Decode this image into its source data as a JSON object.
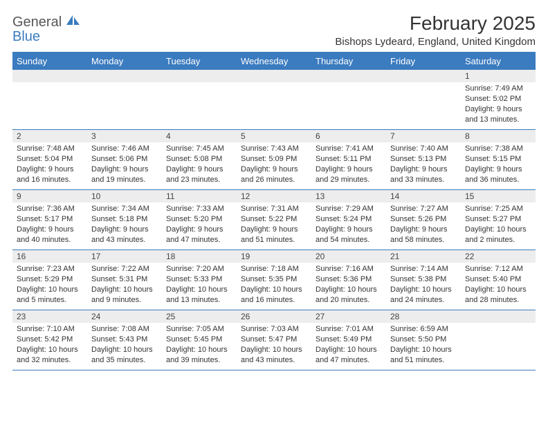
{
  "logo": {
    "text1": "General",
    "text2": "Blue"
  },
  "title": "February 2025",
  "location": "Bishops Lydeard, England, United Kingdom",
  "colors": {
    "header_bg": "#3b7bbf",
    "daynum_bg": "#ededed",
    "text": "#333333",
    "logo_gray": "#555555",
    "logo_blue": "#3b7bbf"
  },
  "day_labels": [
    "Sunday",
    "Monday",
    "Tuesday",
    "Wednesday",
    "Thursday",
    "Friday",
    "Saturday"
  ],
  "weeks": [
    [
      {
        "n": "",
        "lines": []
      },
      {
        "n": "",
        "lines": []
      },
      {
        "n": "",
        "lines": []
      },
      {
        "n": "",
        "lines": []
      },
      {
        "n": "",
        "lines": []
      },
      {
        "n": "",
        "lines": []
      },
      {
        "n": "1",
        "lines": [
          "Sunrise: 7:49 AM",
          "Sunset: 5:02 PM",
          "Daylight: 9 hours and 13 minutes."
        ]
      }
    ],
    [
      {
        "n": "2",
        "lines": [
          "Sunrise: 7:48 AM",
          "Sunset: 5:04 PM",
          "Daylight: 9 hours and 16 minutes."
        ]
      },
      {
        "n": "3",
        "lines": [
          "Sunrise: 7:46 AM",
          "Sunset: 5:06 PM",
          "Daylight: 9 hours and 19 minutes."
        ]
      },
      {
        "n": "4",
        "lines": [
          "Sunrise: 7:45 AM",
          "Sunset: 5:08 PM",
          "Daylight: 9 hours and 23 minutes."
        ]
      },
      {
        "n": "5",
        "lines": [
          "Sunrise: 7:43 AM",
          "Sunset: 5:09 PM",
          "Daylight: 9 hours and 26 minutes."
        ]
      },
      {
        "n": "6",
        "lines": [
          "Sunrise: 7:41 AM",
          "Sunset: 5:11 PM",
          "Daylight: 9 hours and 29 minutes."
        ]
      },
      {
        "n": "7",
        "lines": [
          "Sunrise: 7:40 AM",
          "Sunset: 5:13 PM",
          "Daylight: 9 hours and 33 minutes."
        ]
      },
      {
        "n": "8",
        "lines": [
          "Sunrise: 7:38 AM",
          "Sunset: 5:15 PM",
          "Daylight: 9 hours and 36 minutes."
        ]
      }
    ],
    [
      {
        "n": "9",
        "lines": [
          "Sunrise: 7:36 AM",
          "Sunset: 5:17 PM",
          "Daylight: 9 hours and 40 minutes."
        ]
      },
      {
        "n": "10",
        "lines": [
          "Sunrise: 7:34 AM",
          "Sunset: 5:18 PM",
          "Daylight: 9 hours and 43 minutes."
        ]
      },
      {
        "n": "11",
        "lines": [
          "Sunrise: 7:33 AM",
          "Sunset: 5:20 PM",
          "Daylight: 9 hours and 47 minutes."
        ]
      },
      {
        "n": "12",
        "lines": [
          "Sunrise: 7:31 AM",
          "Sunset: 5:22 PM",
          "Daylight: 9 hours and 51 minutes."
        ]
      },
      {
        "n": "13",
        "lines": [
          "Sunrise: 7:29 AM",
          "Sunset: 5:24 PM",
          "Daylight: 9 hours and 54 minutes."
        ]
      },
      {
        "n": "14",
        "lines": [
          "Sunrise: 7:27 AM",
          "Sunset: 5:26 PM",
          "Daylight: 9 hours and 58 minutes."
        ]
      },
      {
        "n": "15",
        "lines": [
          "Sunrise: 7:25 AM",
          "Sunset: 5:27 PM",
          "Daylight: 10 hours and 2 minutes."
        ]
      }
    ],
    [
      {
        "n": "16",
        "lines": [
          "Sunrise: 7:23 AM",
          "Sunset: 5:29 PM",
          "Daylight: 10 hours and 5 minutes."
        ]
      },
      {
        "n": "17",
        "lines": [
          "Sunrise: 7:22 AM",
          "Sunset: 5:31 PM",
          "Daylight: 10 hours and 9 minutes."
        ]
      },
      {
        "n": "18",
        "lines": [
          "Sunrise: 7:20 AM",
          "Sunset: 5:33 PM",
          "Daylight: 10 hours and 13 minutes."
        ]
      },
      {
        "n": "19",
        "lines": [
          "Sunrise: 7:18 AM",
          "Sunset: 5:35 PM",
          "Daylight: 10 hours and 16 minutes."
        ]
      },
      {
        "n": "20",
        "lines": [
          "Sunrise: 7:16 AM",
          "Sunset: 5:36 PM",
          "Daylight: 10 hours and 20 minutes."
        ]
      },
      {
        "n": "21",
        "lines": [
          "Sunrise: 7:14 AM",
          "Sunset: 5:38 PM",
          "Daylight: 10 hours and 24 minutes."
        ]
      },
      {
        "n": "22",
        "lines": [
          "Sunrise: 7:12 AM",
          "Sunset: 5:40 PM",
          "Daylight: 10 hours and 28 minutes."
        ]
      }
    ],
    [
      {
        "n": "23",
        "lines": [
          "Sunrise: 7:10 AM",
          "Sunset: 5:42 PM",
          "Daylight: 10 hours and 32 minutes."
        ]
      },
      {
        "n": "24",
        "lines": [
          "Sunrise: 7:08 AM",
          "Sunset: 5:43 PM",
          "Daylight: 10 hours and 35 minutes."
        ]
      },
      {
        "n": "25",
        "lines": [
          "Sunrise: 7:05 AM",
          "Sunset: 5:45 PM",
          "Daylight: 10 hours and 39 minutes."
        ]
      },
      {
        "n": "26",
        "lines": [
          "Sunrise: 7:03 AM",
          "Sunset: 5:47 PM",
          "Daylight: 10 hours and 43 minutes."
        ]
      },
      {
        "n": "27",
        "lines": [
          "Sunrise: 7:01 AM",
          "Sunset: 5:49 PM",
          "Daylight: 10 hours and 47 minutes."
        ]
      },
      {
        "n": "28",
        "lines": [
          "Sunrise: 6:59 AM",
          "Sunset: 5:50 PM",
          "Daylight: 10 hours and 51 minutes."
        ]
      },
      {
        "n": "",
        "lines": []
      }
    ]
  ]
}
